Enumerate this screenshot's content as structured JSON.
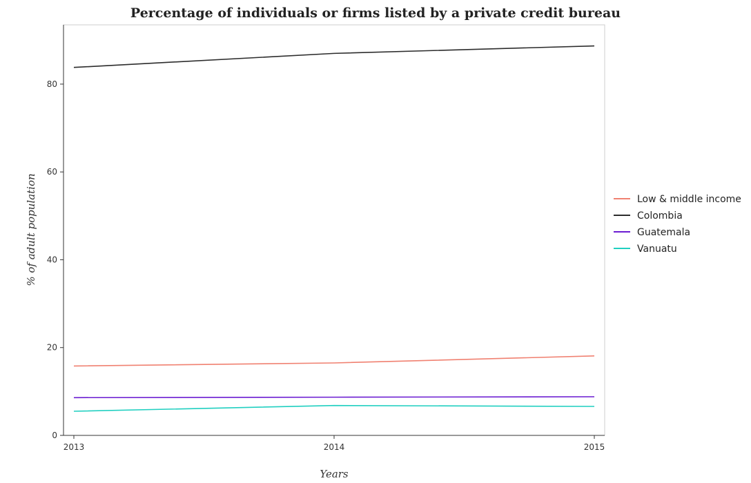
{
  "chart_data": {
    "type": "line",
    "title": "Percentage of individuals or firms listed by a private credit bureau",
    "xlabel": "Years",
    "ylabel": "% of adult population",
    "x": [
      "2013",
      "2014",
      "2015"
    ],
    "yticks": [
      0,
      20,
      40,
      60,
      80
    ],
    "ylim": [
      0,
      93.5
    ],
    "grid": false,
    "legend_position": "right",
    "series": [
      {
        "name": "Low & middle income",
        "color": "#f08070",
        "values": [
          15.8,
          16.5,
          18.1
        ]
      },
      {
        "name": "Colombia",
        "color": "#2b2b2b",
        "values": [
          83.8,
          87.0,
          88.7
        ]
      },
      {
        "name": "Guatemala",
        "color": "#6a1bd1",
        "values": [
          8.6,
          8.7,
          8.8
        ]
      },
      {
        "name": "Vanuatu",
        "color": "#1fcfc0",
        "values": [
          5.5,
          6.8,
          6.6
        ]
      }
    ]
  }
}
